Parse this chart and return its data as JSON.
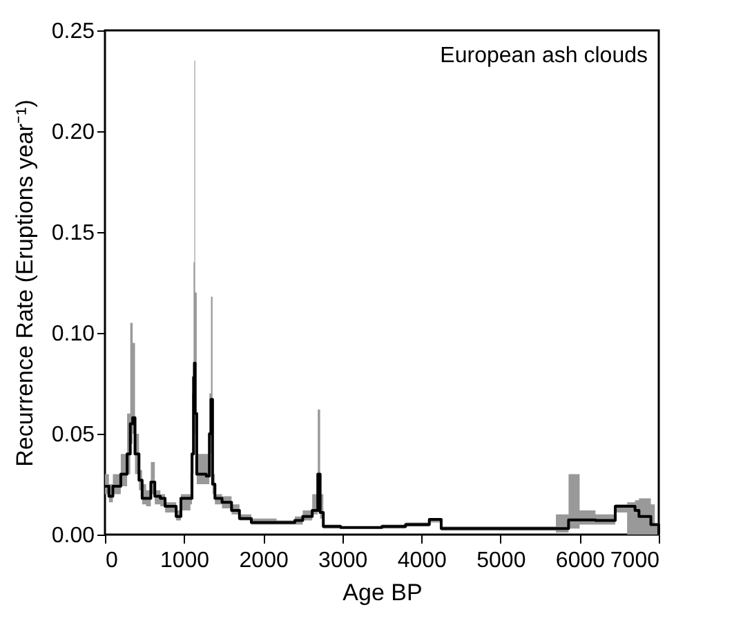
{
  "chart_data": {
    "type": "step",
    "xlabel": "Age BP",
    "ylabel": "Recurrence Rate (Eruptions year⁻¹)",
    "annotations": [
      "European ash clouds"
    ],
    "x": [
      0,
      50,
      100,
      200,
      280,
      320,
      350,
      380,
      430,
      470,
      520,
      580,
      630,
      700,
      760,
      900,
      960,
      1080,
      1100,
      1120,
      1130,
      1140,
      1160,
      1190,
      1280,
      1320,
      1340,
      1360,
      1390,
      1480,
      1600,
      1700,
      1850,
      2170,
      2400,
      2500,
      2620,
      2690,
      2720,
      2760,
      2980,
      3500,
      3800,
      4100,
      4250,
      5700,
      5860,
      6000,
      6200,
      6450,
      6600,
      6700,
      6750,
      6900,
      6950,
      7000
    ],
    "series": [
      {
        "color": "#000000",
        "values": [
          0.024,
          0.019,
          0.024,
          0.03,
          0.04,
          0.055,
          0.058,
          0.04,
          0.027,
          0.018,
          0.018,
          0.026,
          0.019,
          0.018,
          0.014,
          0.009,
          0.018,
          0.018,
          0.04,
          0.078,
          0.085,
          0.06,
          0.03,
          0.03,
          0.029,
          0.05,
          0.067,
          0.025,
          0.018,
          0.016,
          0.012,
          0.008,
          0.006,
          0.006,
          0.007,
          0.009,
          0.012,
          0.03,
          0.011,
          0.004,
          0.0035,
          0.004,
          0.005,
          0.0075,
          0.003,
          0.003,
          0.0073,
          0.0073,
          0.007,
          0.014,
          0.014,
          0.012,
          0.009,
          0.005,
          0.005,
          0.0
        ],
        "lower": [
          0.02,
          0.016,
          0.02,
          0.024,
          0.03,
          0.045,
          0.05,
          0.03,
          0.022,
          0.015,
          0.014,
          0.02,
          0.015,
          0.014,
          0.011,
          0.007,
          0.012,
          0.015,
          0.03,
          0.06,
          0.07,
          0.05,
          0.025,
          0.025,
          0.025,
          0.04,
          0.055,
          0.02,
          0.015,
          0.013,
          0.01,
          0.007,
          0.005,
          0.005,
          0.005,
          0.007,
          0.01,
          0.02,
          0.008,
          0.003,
          0.003,
          0.003,
          0.004,
          0.006,
          0.002,
          0.001,
          0.003,
          0.005,
          0.005,
          0.011,
          0.0,
          0.0,
          0.0,
          0.0,
          0.0,
          0.0
        ],
        "upper": [
          0.03,
          0.025,
          0.03,
          0.04,
          0.06,
          0.105,
          0.095,
          0.05,
          0.032,
          0.025,
          0.022,
          0.036,
          0.022,
          0.02,
          0.016,
          0.012,
          0.02,
          0.03,
          0.07,
          0.135,
          0.235,
          0.12,
          0.04,
          0.04,
          0.04,
          0.07,
          0.118,
          0.03,
          0.02,
          0.019,
          0.015,
          0.01,
          0.008,
          0.007,
          0.009,
          0.012,
          0.02,
          0.062,
          0.02,
          0.005,
          0.004,
          0.005,
          0.006,
          0.008,
          0.004,
          0.01,
          0.03,
          0.012,
          0.01,
          0.015,
          0.016,
          0.017,
          0.018,
          0.015,
          0.005,
          0.0
        ]
      }
    ],
    "xlim": [
      0,
      7000
    ],
    "xticks": [
      0,
      1000,
      2000,
      3000,
      4000,
      5000,
      6000,
      7000
    ],
    "ylim": [
      0,
      0.25
    ],
    "yticks": [
      {
        "value": 0,
        "label": "0.00"
      },
      {
        "value": 0.05,
        "label": "0.05"
      },
      {
        "value": 0.1,
        "label": "0.10"
      },
      {
        "value": 0.15,
        "label": "0.15"
      },
      {
        "value": 0.2,
        "label": "0.20"
      },
      {
        "value": 0.25,
        "label": "0.25"
      }
    ]
  }
}
